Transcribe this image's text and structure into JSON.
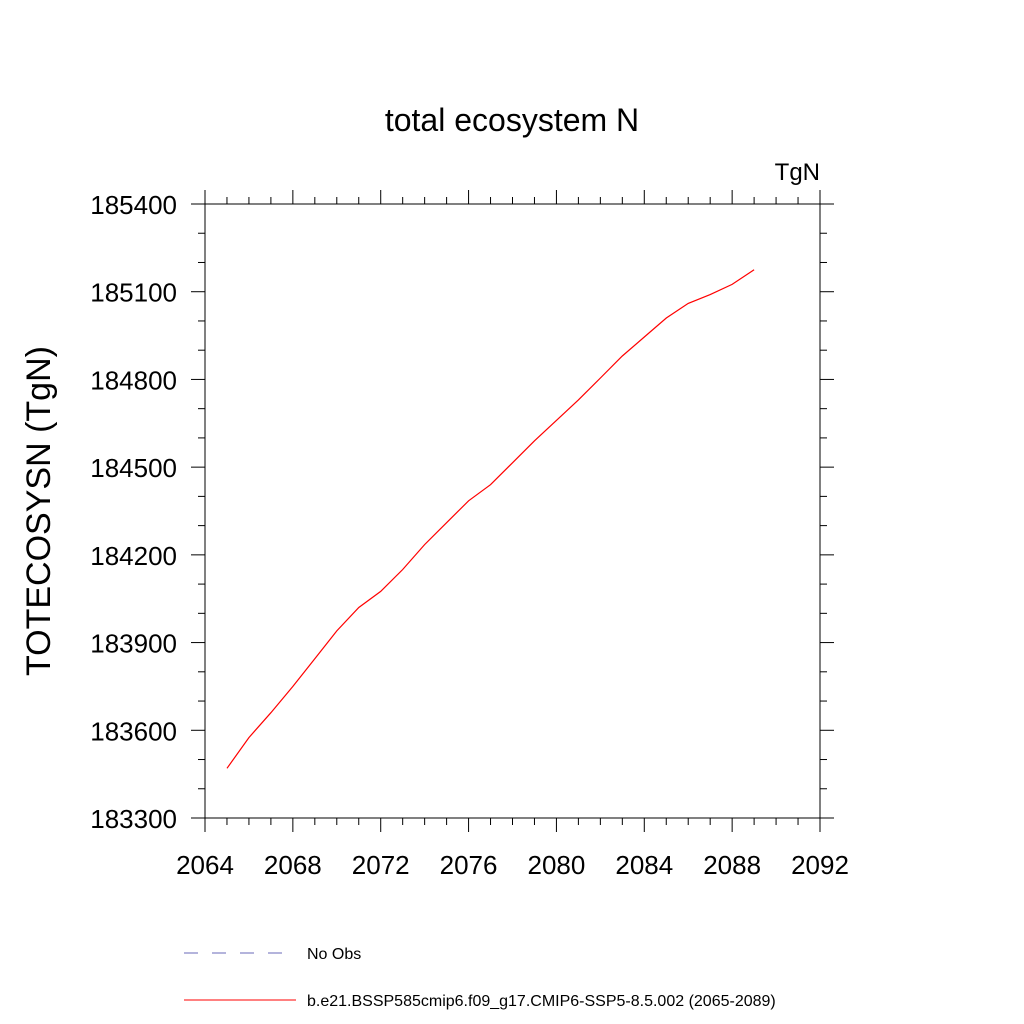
{
  "chart_data": {
    "type": "line",
    "title": "total ecosystem N",
    "units_label": "TgN",
    "xlabel": "",
    "ylabel": "TOTECOSYSN  (TgN)",
    "xlim": [
      2064,
      2092
    ],
    "ylim": [
      183300,
      185400
    ],
    "x_ticks": [
      "2064",
      "2068",
      "2072",
      "2076",
      "2080",
      "2084",
      "2088",
      "2092"
    ],
    "y_ticks": [
      "183300",
      "183600",
      "183900",
      "184200",
      "184500",
      "184800",
      "185100",
      "185400"
    ],
    "grid": false,
    "legend_position": "bottom",
    "series": [
      {
        "name": "No Obs",
        "style": "dashed",
        "color": "#6a6ab8",
        "x": [],
        "y": []
      },
      {
        "name": "b.e21.BSSP585cmip6.f09_g17.CMIP6-SSP5-8.5.002 (2065-2089)",
        "style": "solid",
        "color": "#ff0000",
        "x": [
          2065,
          2066,
          2067,
          2068,
          2069,
          2070,
          2071,
          2072,
          2073,
          2074,
          2075,
          2076,
          2077,
          2078,
          2079,
          2080,
          2081,
          2082,
          2083,
          2084,
          2085,
          2086,
          2087,
          2088,
          2089
        ],
        "y": [
          183470,
          183575,
          183660,
          183750,
          183845,
          183940,
          184020,
          184075,
          184150,
          184235,
          184310,
          184385,
          184440,
          184515,
          184590,
          184660,
          184730,
          184805,
          184880,
          184945,
          185010,
          185060,
          185090,
          185125,
          185175
        ]
      }
    ]
  }
}
